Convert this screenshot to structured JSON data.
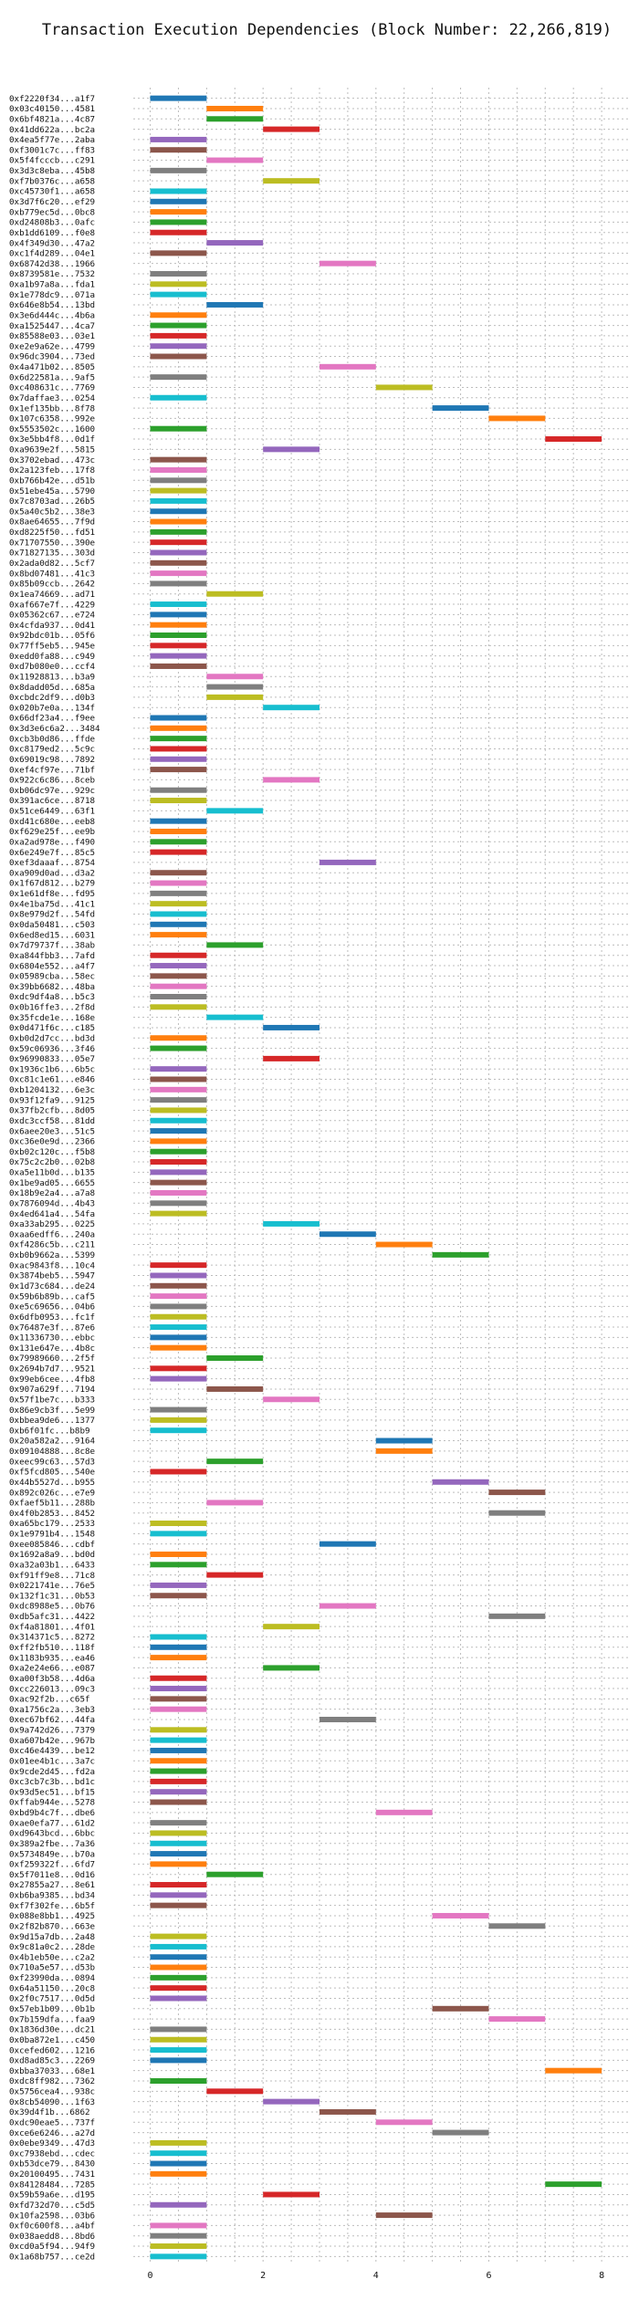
{
  "chart_data": {
    "type": "bar",
    "orientation": "horizontal-gantt",
    "title": "Transaction Execution Dependencies (Block Number: 22,266,819)",
    "xlabel": "",
    "ylabel": "",
    "xlim": [
      -0.3,
      8.5
    ],
    "x_ticks": [
      0,
      2,
      4,
      6,
      8
    ],
    "grid": true,
    "palette": [
      "#1f77b4",
      "#ff7f0e",
      "#2ca02c",
      "#d62728",
      "#9467bd",
      "#8c564b",
      "#e377c2",
      "#7f7f7f",
      "#bcbd22",
      "#17becf"
    ],
    "transactions": [
      {
        "label": "0xf2220f34...a1f7",
        "start": 0
      },
      {
        "label": "0x03c40150...4581",
        "start": 1
      },
      {
        "label": "0x6bf4821a...4c87",
        "start": 1
      },
      {
        "label": "0x41dd622a...bc2a",
        "start": 2
      },
      {
        "label": "0x4ea5f77e...2aba",
        "start": 0
      },
      {
        "label": "0xf3001c7c...ff83",
        "start": 0
      },
      {
        "label": "0x5f4fcccb...c291",
        "start": 1
      },
      {
        "label": "0x3d3c8eba...45b8",
        "start": 0
      },
      {
        "label": "0xf7b0376c...a658",
        "start": 2
      },
      {
        "label": "0xc45730f1...a658",
        "start": 0
      },
      {
        "label": "0x3d7f6c20...ef29",
        "start": 0
      },
      {
        "label": "0xb779ec5d...0bc8",
        "start": 0
      },
      {
        "label": "0xd24808b3...0afc",
        "start": 0
      },
      {
        "label": "0xb1dd6109...f0e8",
        "start": 0
      },
      {
        "label": "0x4f349d30...47a2",
        "start": 1
      },
      {
        "label": "0xc1f4d289...04e1",
        "start": 0
      },
      {
        "label": "0x68742d38...1966",
        "start": 3
      },
      {
        "label": "0x8739581e...7532",
        "start": 0
      },
      {
        "label": "0xa1b97a8a...fda1",
        "start": 0
      },
      {
        "label": "0x1e778dc9...071a",
        "start": 0
      },
      {
        "label": "0x646e8b54...13bd",
        "start": 1
      },
      {
        "label": "0x3e6d444c...4b6a",
        "start": 0
      },
      {
        "label": "0xa1525447...4ca7",
        "start": 0
      },
      {
        "label": "0x85588e03...03e1",
        "start": 0
      },
      {
        "label": "0xe2e9a62e...4799",
        "start": 0
      },
      {
        "label": "0x96dc3904...73ed",
        "start": 0
      },
      {
        "label": "0x4a471b02...8505",
        "start": 3
      },
      {
        "label": "0x6d22581a...9af5",
        "start": 0
      },
      {
        "label": "0xc408631c...7769",
        "start": 4
      },
      {
        "label": "0x7daffae3...0254",
        "start": 0
      },
      {
        "label": "0x1ef135bb...8f78",
        "start": 5
      },
      {
        "label": "0x107c6358...992e",
        "start": 6
      },
      {
        "label": "0x5553502c...1600",
        "start": 0
      },
      {
        "label": "0x3e5bb4f8...0d1f",
        "start": 7
      },
      {
        "label": "0xa9639e2f...5815",
        "start": 2
      },
      {
        "label": "0x3702ebad...473c",
        "start": 0
      },
      {
        "label": "0x2a123feb...17f8",
        "start": 0
      },
      {
        "label": "0xb766b42e...d51b",
        "start": 0
      },
      {
        "label": "0x51ebe45a...5790",
        "start": 0
      },
      {
        "label": "0x7c8703ad...26b5",
        "start": 0
      },
      {
        "label": "0x5a40c5b2...38e3",
        "start": 0
      },
      {
        "label": "0x8ae64655...7f9d",
        "start": 0
      },
      {
        "label": "0xd8225f50...fd51",
        "start": 0
      },
      {
        "label": "0x71707550...390e",
        "start": 0
      },
      {
        "label": "0x71827135...303d",
        "start": 0
      },
      {
        "label": "0x2ada0d82...5cf7",
        "start": 0
      },
      {
        "label": "0x8bd07481...41c3",
        "start": 0
      },
      {
        "label": "0x85b09ccb...2642",
        "start": 0
      },
      {
        "label": "0x1ea74669...ad71",
        "start": 1
      },
      {
        "label": "0xaf667e7f...4229",
        "start": 0
      },
      {
        "label": "0x05362c67...e724",
        "start": 0
      },
      {
        "label": "0x4cfda937...0d41",
        "start": 0
      },
      {
        "label": "0x92bdc01b...05f6",
        "start": 0
      },
      {
        "label": "0x77ff5eb5...945e",
        "start": 0
      },
      {
        "label": "0xedd0fa88...c949",
        "start": 0
      },
      {
        "label": "0xd7b080e0...ccf4",
        "start": 0
      },
      {
        "label": "0x11928813...b3a9",
        "start": 1
      },
      {
        "label": "0x8dadd05d...685a",
        "start": 1
      },
      {
        "label": "0xcbdc2df9...d0b3",
        "start": 1
      },
      {
        "label": "0x020b7e0a...134f",
        "start": 2
      },
      {
        "label": "0x66df23a4...f9ee",
        "start": 0
      },
      {
        "label": "0x3d3e6c6a2...3484",
        "start": 0
      },
      {
        "label": "0xcb3b0d86...ffde",
        "start": 0
      },
      {
        "label": "0xc8179ed2...5c9c",
        "start": 0
      },
      {
        "label": "0x69019c98...7892",
        "start": 0
      },
      {
        "label": "0xef4cf97e...71bf",
        "start": 0
      },
      {
        "label": "0x922c6c86...8ceb",
        "start": 2
      },
      {
        "label": "0xb06dc97e...929c",
        "start": 0
      },
      {
        "label": "0x391ac6ce...8718",
        "start": 0
      },
      {
        "label": "0x51ce6449...63f1",
        "start": 1
      },
      {
        "label": "0xd41c680e...eeb8",
        "start": 0
      },
      {
        "label": "0xf629e25f...ee9b",
        "start": 0
      },
      {
        "label": "0xa2ad978e...f490",
        "start": 0
      },
      {
        "label": "0x6e249e7f...85c5",
        "start": 0
      },
      {
        "label": "0xef3daaaf...8754",
        "start": 3
      },
      {
        "label": "0xa909d0ad...d3a2",
        "start": 0
      },
      {
        "label": "0x1f67d812...b279",
        "start": 0
      },
      {
        "label": "0x1e61df8e...fd95",
        "start": 0
      },
      {
        "label": "0x4e1ba75d...41c1",
        "start": 0
      },
      {
        "label": "0x8e979d2f...54fd",
        "start": 0
      },
      {
        "label": "0x0da50481...c503",
        "start": 0
      },
      {
        "label": "0x6ed8ed15...6031",
        "start": 0
      },
      {
        "label": "0x7d79737f...38ab",
        "start": 1
      },
      {
        "label": "0xa844fbb3...7afd",
        "start": 0
      },
      {
        "label": "0x6804e552...a4f7",
        "start": 0
      },
      {
        "label": "0x05989cba...58ec",
        "start": 0
      },
      {
        "label": "0x39bb6682...48ba",
        "start": 0
      },
      {
        "label": "0xdc9df4a8...b5c3",
        "start": 0
      },
      {
        "label": "0x0b16ffe3...2f8d",
        "start": 0
      },
      {
        "label": "0x35fcde1e...168e",
        "start": 1
      },
      {
        "label": "0x0d471f6c...c185",
        "start": 2
      },
      {
        "label": "0xb0d2d7cc...bd3d",
        "start": 0
      },
      {
        "label": "0x59c06936...3f46",
        "start": 0
      },
      {
        "label": "0x96990833...05e7",
        "start": 2
      },
      {
        "label": "0x1936c1b6...6b5c",
        "start": 0
      },
      {
        "label": "0xc81c1e61...e846",
        "start": 0
      },
      {
        "label": "0xb1204132...6e3c",
        "start": 0
      },
      {
        "label": "0x93f12fa9...9125",
        "start": 0
      },
      {
        "label": "0x37fb2cfb...8d05",
        "start": 0
      },
      {
        "label": "0xdc3ccf58...81dd",
        "start": 0
      },
      {
        "label": "0x6aee20e3...51c5",
        "start": 0
      },
      {
        "label": "0xc36e0e9d...2366",
        "start": 0
      },
      {
        "label": "0xb02c120c...f5b8",
        "start": 0
      },
      {
        "label": "0x75c2c2b0...02b8",
        "start": 0
      },
      {
        "label": "0xa5e11b0d...b135",
        "start": 0
      },
      {
        "label": "0x1be9ad05...6655",
        "start": 0
      },
      {
        "label": "0x18b9e2a4...a7a8",
        "start": 0
      },
      {
        "label": "0x7876094d...4b43",
        "start": 0
      },
      {
        "label": "0x4ed641a4...54fa",
        "start": 0
      },
      {
        "label": "0xa33ab295...0225",
        "start": 2
      },
      {
        "label": "0xaa6edff6...240a",
        "start": 3
      },
      {
        "label": "0xf4286c5b...c211",
        "start": 4
      },
      {
        "label": "0xb0b9662a...5399",
        "start": 5
      },
      {
        "label": "0xac9843f8...10c4",
        "start": 0
      },
      {
        "label": "0x3874beb5...5947",
        "start": 0
      },
      {
        "label": "0x1d73c684...de24",
        "start": 0
      },
      {
        "label": "0x59b6b89b...caf5",
        "start": 0
      },
      {
        "label": "0xe5c69656...04b6",
        "start": 0
      },
      {
        "label": "0x6dfb0953...fc1f",
        "start": 0
      },
      {
        "label": "0x76487e3f...87e6",
        "start": 0
      },
      {
        "label": "0x11336730...ebbc",
        "start": 0
      },
      {
        "label": "0x131e647e...4b8c",
        "start": 0
      },
      {
        "label": "0x79989660...2f5f",
        "start": 1
      },
      {
        "label": "0x2694b7d7...9521",
        "start": 0
      },
      {
        "label": "0x99eb6cee...4fb8",
        "start": 0
      },
      {
        "label": "0x907a629f...7194",
        "start": 1
      },
      {
        "label": "0x57f1be7c...b333",
        "start": 2
      },
      {
        "label": "0x86e9cb3f...5e99",
        "start": 0
      },
      {
        "label": "0xbbea9de6...1377",
        "start": 0
      },
      {
        "label": "0xb6f01fc...b8b9",
        "start": 0
      },
      {
        "label": "0x20a582a2...9164",
        "start": 4
      },
      {
        "label": "0x09104888...8c8e",
        "start": 4
      },
      {
        "label": "0xeec99c63...57d3",
        "start": 1
      },
      {
        "label": "0xf5fcd805...540e",
        "start": 0
      },
      {
        "label": "0x44b5527d...b955",
        "start": 5
      },
      {
        "label": "0x892c026c...e7e9",
        "start": 6
      },
      {
        "label": "0xfaef5b11...288b",
        "start": 1
      },
      {
        "label": "0x4f0b2853...8452",
        "start": 6
      },
      {
        "label": "0xa65bc179...2533",
        "start": 0
      },
      {
        "label": "0x1e9791b4...1548",
        "start": 0
      },
      {
        "label": "0xee085846...cdbf",
        "start": 3
      },
      {
        "label": "0x1692a8a9...bd0d",
        "start": 0
      },
      {
        "label": "0xa32a03b1...6433",
        "start": 0
      },
      {
        "label": "0xf91ff9e8...71c8",
        "start": 1
      },
      {
        "label": "0x0221741e...76e5",
        "start": 0
      },
      {
        "label": "0x132f1c31...0b53",
        "start": 0
      },
      {
        "label": "0xdc8988e5...0b76",
        "start": 3
      },
      {
        "label": "0xdb5afc31...4422",
        "start": 6
      },
      {
        "label": "0xf4a81801...4f01",
        "start": 2
      },
      {
        "label": "0x314371c5...8272",
        "start": 0
      },
      {
        "label": "0xff2fb510...118f",
        "start": 0
      },
      {
        "label": "0x1183b935...ea46",
        "start": 0
      },
      {
        "label": "0xa2e24e66...e087",
        "start": 2
      },
      {
        "label": "0xa00f3b58...4d6a",
        "start": 0
      },
      {
        "label": "0xcc226013...09c3",
        "start": 0
      },
      {
        "label": "0xac92f2b...c65f",
        "start": 0
      },
      {
        "label": "0xa1756c2a...3eb3",
        "start": 0
      },
      {
        "label": "0xec67bf62...44fa",
        "start": 3
      },
      {
        "label": "0x9a742d26...7379",
        "start": 0
      },
      {
        "label": "0xa607b42e...967b",
        "start": 0
      },
      {
        "label": "0xc46e4439...be12",
        "start": 0
      },
      {
        "label": "0x01ee4b1c...3a7c",
        "start": 0
      },
      {
        "label": "0x9cde2d45...fd2a",
        "start": 0
      },
      {
        "label": "0xc3cb7c3b...bd1c",
        "start": 0
      },
      {
        "label": "0x93d5ec51...bf15",
        "start": 0
      },
      {
        "label": "0xffab944e...5278",
        "start": 0
      },
      {
        "label": "0xbd9b4c7f...dbe6",
        "start": 4
      },
      {
        "label": "0xae0efa77...61d2",
        "start": 0
      },
      {
        "label": "0xd9643bcd...6bbc",
        "start": 0
      },
      {
        "label": "0x389a2fbe...7a36",
        "start": 0
      },
      {
        "label": "0x5734849e...b70a",
        "start": 0
      },
      {
        "label": "0xf259322f...6fd7",
        "start": 0
      },
      {
        "label": "0x5f7011e8...0d16",
        "start": 1
      },
      {
        "label": "0x27855a27...8e61",
        "start": 0
      },
      {
        "label": "0xb6ba9385...bd34",
        "start": 0
      },
      {
        "label": "0xf7f302fe...6b5f",
        "start": 0
      },
      {
        "label": "0x088e8bb1...4925",
        "start": 5
      },
      {
        "label": "0x2f82b870...663e",
        "start": 6
      },
      {
        "label": "0x9d15a7db...2a48",
        "start": 0
      },
      {
        "label": "0x9c81a0c2...28de",
        "start": 0
      },
      {
        "label": "0x4b1eb50e...c2a2",
        "start": 0
      },
      {
        "label": "0x710a5e57...d53b",
        "start": 0
      },
      {
        "label": "0xf23990da...0894",
        "start": 0
      },
      {
        "label": "0x64a51150...20c8",
        "start": 0
      },
      {
        "label": "0x2f0c7517...0d5d",
        "start": 0
      },
      {
        "label": "0x57eb1b09...0b1b",
        "start": 5
      },
      {
        "label": "0x7b159dfa...faa9",
        "start": 6
      },
      {
        "label": "0x1836d30e...dc21",
        "start": 0
      },
      {
        "label": "0x0ba872e1...c450",
        "start": 0
      },
      {
        "label": "0xcefed602...1216",
        "start": 0
      },
      {
        "label": "0xd8ad85c3...2269",
        "start": 0
      },
      {
        "label": "0xbba37033...68e1",
        "start": 7
      },
      {
        "label": "0xdc8ff982...7362",
        "start": 0
      },
      {
        "label": "0x5756cea4...938c",
        "start": 1
      },
      {
        "label": "0x8cb54090...1f63",
        "start": 2
      },
      {
        "label": "0x39d4f1b...6862",
        "start": 3
      },
      {
        "label": "0xdc90eae5...737f",
        "start": 4
      },
      {
        "label": "0xce6e6246...a27d",
        "start": 5
      },
      {
        "label": "0x0ebe9349...47d3",
        "start": 0
      },
      {
        "label": "0xc7938ebd...cdec",
        "start": 0
      },
      {
        "label": "0xb53dce79...8430",
        "start": 0
      },
      {
        "label": "0x20100495...7431",
        "start": 0
      },
      {
        "label": "0x84128484...7285",
        "start": 7
      },
      {
        "label": "0x59b59a6e...d195",
        "start": 2
      },
      {
        "label": "0xfd732d70...c5d5",
        "start": 0
      },
      {
        "label": "0x10fa2598...03b6",
        "start": 4
      },
      {
        "label": "0xf0c600f8...a4bf",
        "start": 0
      },
      {
        "label": "0x038aedd8...8bd6",
        "start": 0
      },
      {
        "label": "0xcd0a5f94...94f9",
        "start": 0
      },
      {
        "label": "0x1a68b757...ce2d",
        "start": 0
      }
    ]
  }
}
